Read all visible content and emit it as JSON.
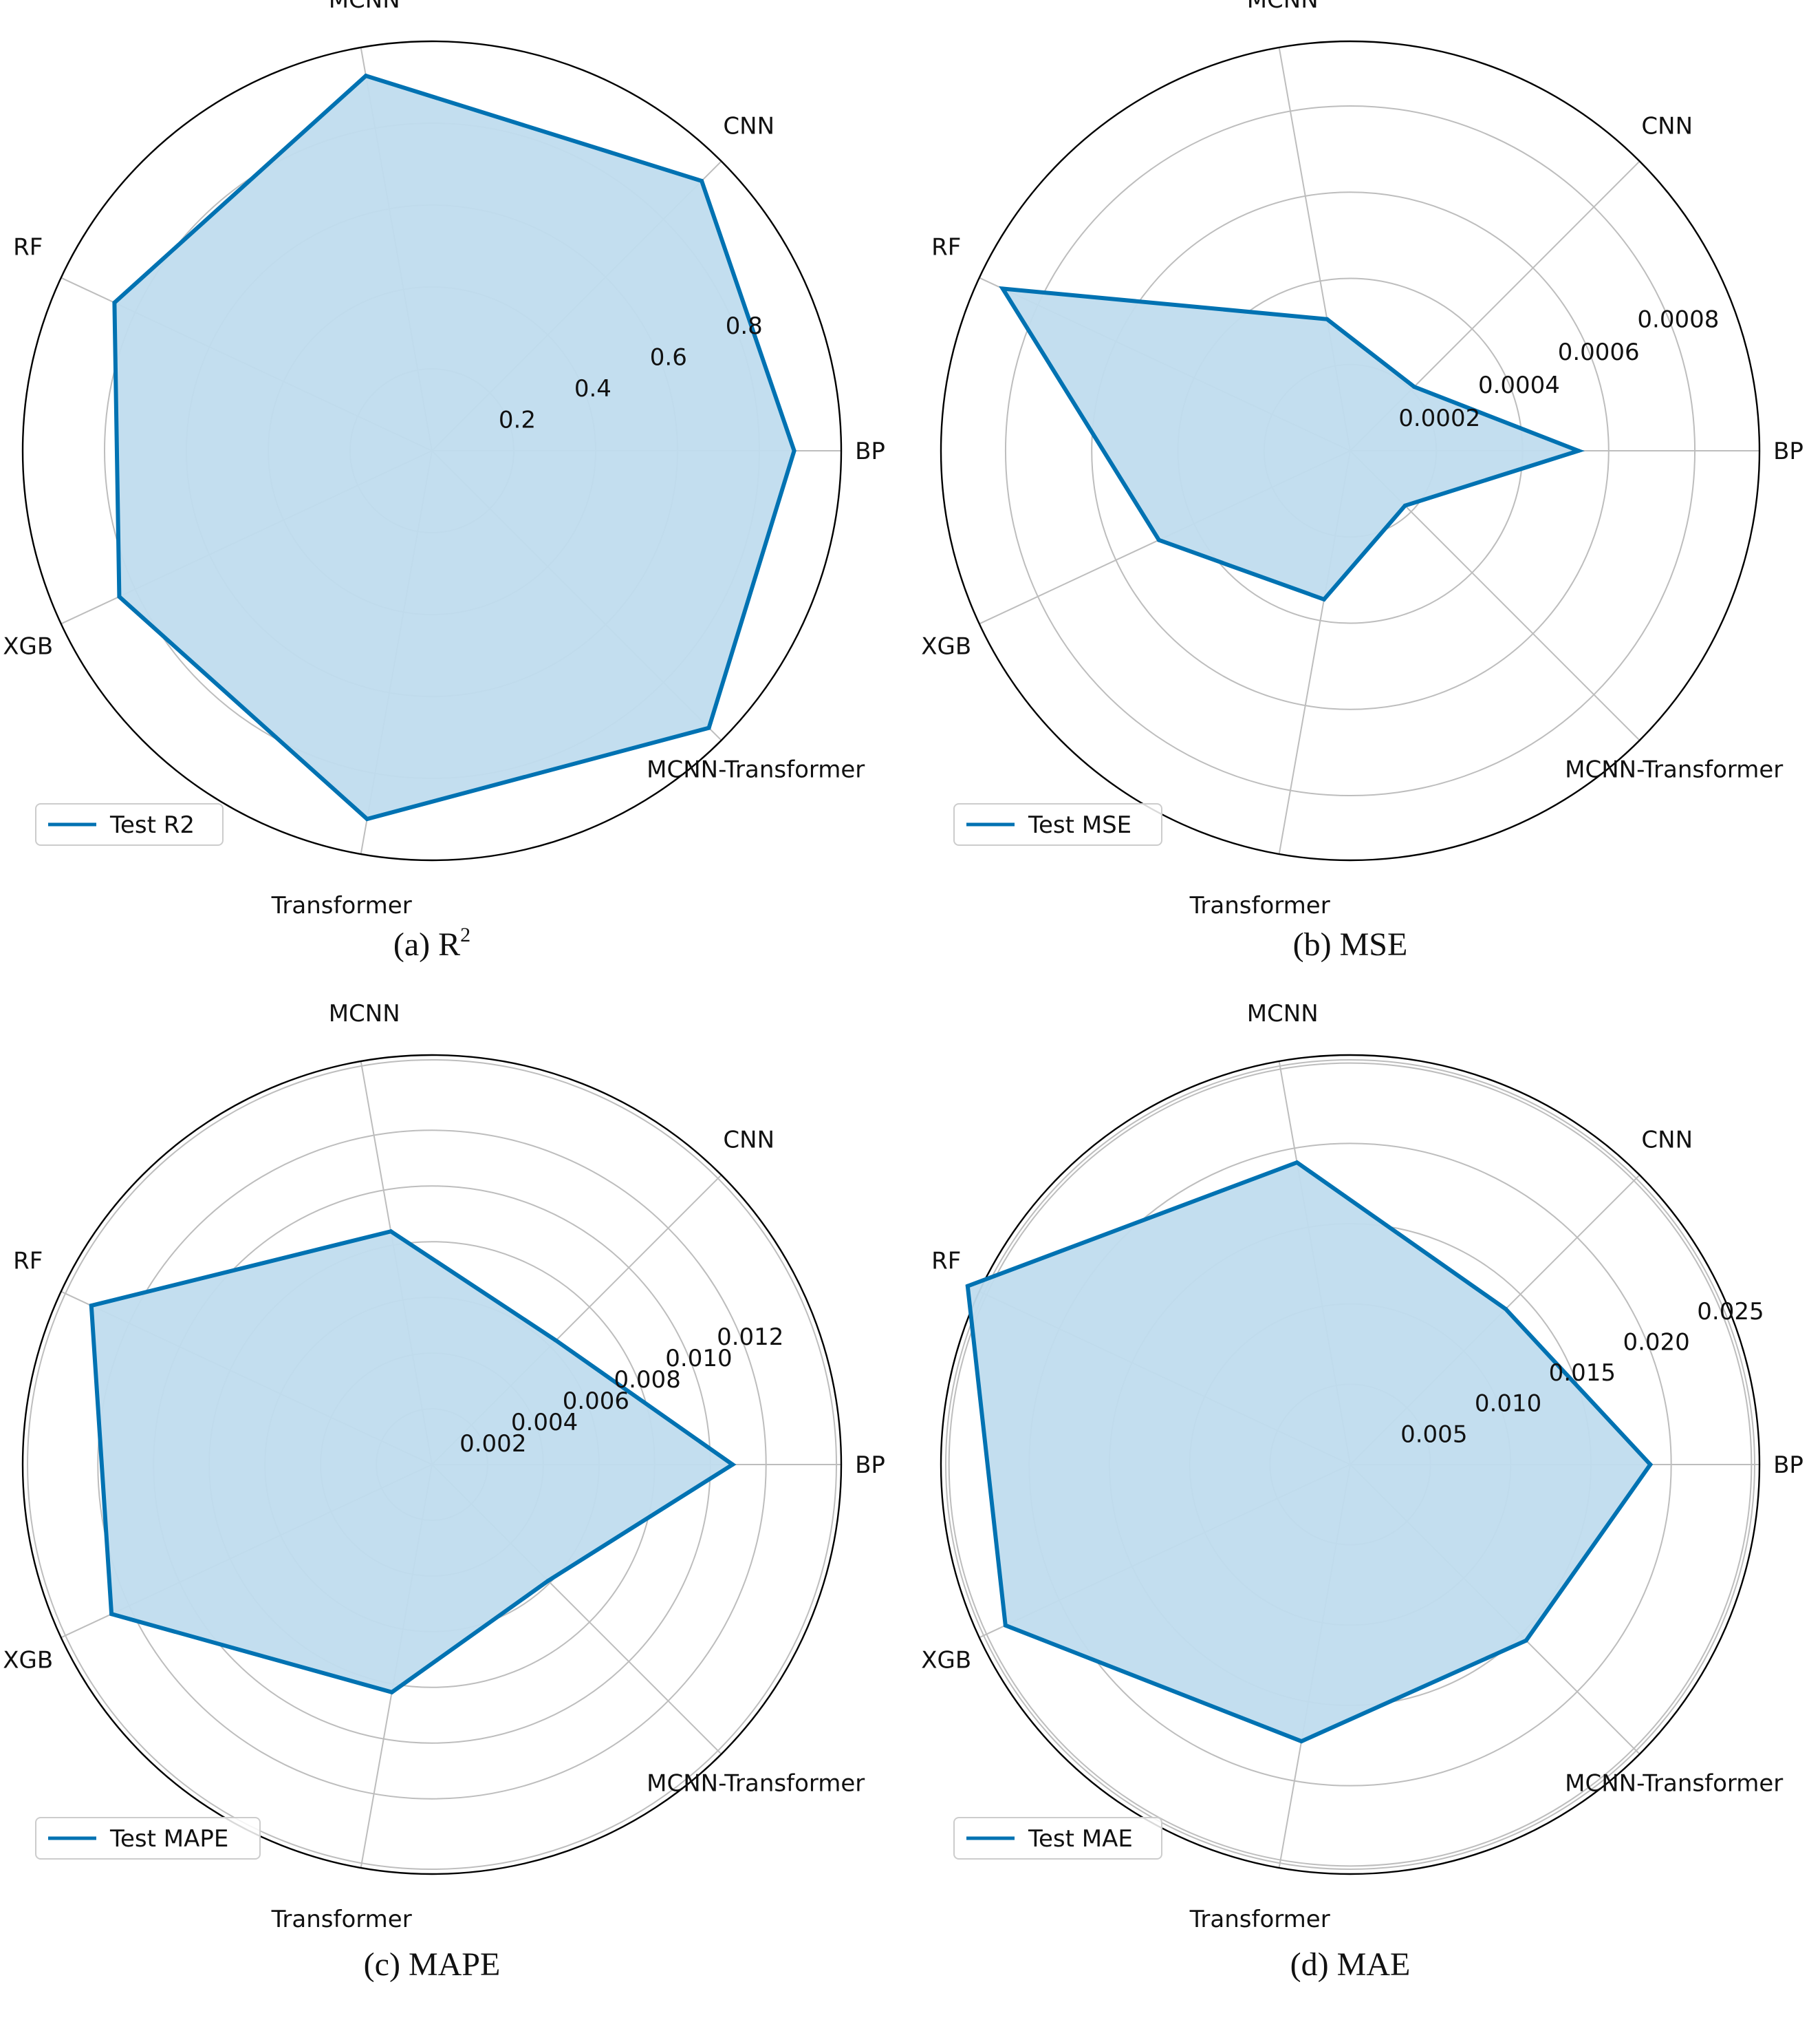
{
  "chart_data": [
    {
      "type": "radar",
      "caption": "(a) R",
      "caption_sup": "2",
      "categories": [
        "BP",
        "CNN",
        "MCNN",
        "RF",
        "XGB",
        "Transformer",
        "MCNN-Transformer"
      ],
      "series": [
        {
          "name": "Test R2",
          "values": [
            0.885,
            0.932,
            0.93,
            0.856,
            0.843,
            0.913,
            0.957
          ]
        }
      ],
      "rmax": 1.0,
      "ticks": [
        0.2,
        0.4,
        0.6,
        0.8
      ],
      "tick_labels": [
        "0.2",
        "0.4",
        "0.6",
        "0.8"
      ],
      "grid": true,
      "legend": "lower-left"
    },
    {
      "type": "radar",
      "caption": "(b) MSE",
      "caption_sup": "",
      "categories": [
        "BP",
        "CNN",
        "MCNN",
        "RF",
        "XGB",
        "Transformer",
        "MCNN-Transformer"
      ],
      "series": [
        {
          "name": "Test MSE",
          "values": [
            0.00053,
            0.00021,
            0.00031,
            0.00089,
            0.00049,
            0.00035,
            0.00018
          ]
        }
      ],
      "rmax": 0.00095,
      "ticks": [
        0.0002,
        0.0004,
        0.0006,
        0.0008
      ],
      "tick_labels": [
        "0.0002",
        "0.0004",
        "0.0006",
        "0.0008"
      ],
      "grid": true,
      "legend": "lower-left"
    },
    {
      "type": "radar",
      "caption": "(c) MAPE",
      "caption_sup": "",
      "categories": [
        "BP",
        "CNN",
        "MCNN",
        "RF",
        "XGB",
        "Transformer",
        "MCNN-Transformer"
      ],
      "series": [
        {
          "name": "Test MAPE",
          "values": [
            0.0108,
            0.0063,
            0.0085,
            0.0135,
            0.0127,
            0.0083,
            0.0059
          ]
        }
      ],
      "rmax": 0.0147,
      "ticks": [
        0.002,
        0.004,
        0.006,
        0.008,
        0.01,
        0.012
      ],
      "tick_labels": [
        "0.002",
        "0.004",
        "0.006",
        "0.008",
        "0.010",
        "0.012"
      ],
      "grid": true,
      "legend": "lower-left"
    },
    {
      "type": "radar",
      "caption": "(d) MAE",
      "caption_sup": "",
      "categories": [
        "BP",
        "CNN",
        "MCNN",
        "RF",
        "XGB",
        "Transformer",
        "MCNN-Transformer"
      ],
      "series": [
        {
          "name": "Test MAE",
          "values": [
            0.0187,
            0.0137,
            0.0191,
            0.0263,
            0.0237,
            0.0175,
            0.0155
          ]
        }
      ],
      "rmax": 0.0255,
      "ticks": [
        0.005,
        0.01,
        0.015,
        0.02,
        0.025
      ],
      "tick_labels": [
        "0.005",
        "0.010",
        "0.015",
        "0.020",
        "0.025"
      ],
      "grid": true,
      "legend": "lower-left"
    }
  ],
  "colors": {
    "line": "#0072b2",
    "fill": "#c0dcee",
    "grid": "#bdbdbd",
    "frame": "#000000"
  }
}
